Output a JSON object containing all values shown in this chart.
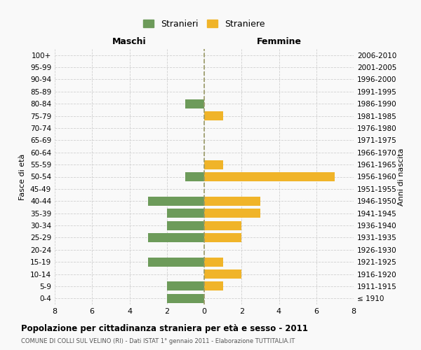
{
  "age_groups": [
    "100+",
    "95-99",
    "90-94",
    "85-89",
    "80-84",
    "75-79",
    "70-74",
    "65-69",
    "60-64",
    "55-59",
    "50-54",
    "45-49",
    "40-44",
    "35-39",
    "30-34",
    "25-29",
    "20-24",
    "15-19",
    "10-14",
    "5-9",
    "0-4"
  ],
  "birth_years": [
    "≤ 1910",
    "1911-1915",
    "1916-1920",
    "1921-1925",
    "1926-1930",
    "1931-1935",
    "1936-1940",
    "1941-1945",
    "1946-1950",
    "1951-1955",
    "1956-1960",
    "1961-1965",
    "1966-1970",
    "1971-1975",
    "1976-1980",
    "1981-1985",
    "1986-1990",
    "1991-1995",
    "1996-2000",
    "2001-2005",
    "2006-2010"
  ],
  "maschi": [
    0,
    0,
    0,
    0,
    1,
    0,
    0,
    0,
    0,
    0,
    1,
    0,
    3,
    2,
    2,
    3,
    0,
    3,
    0,
    2,
    2
  ],
  "femmine": [
    0,
    0,
    0,
    0,
    0,
    1,
    0,
    0,
    0,
    1,
    7,
    0,
    3,
    3,
    2,
    2,
    0,
    1,
    2,
    1,
    0
  ],
  "color_maschi": "#6d9b5a",
  "color_femmine": "#f0b429",
  "title": "Popolazione per cittadinanza straniera per età e sesso - 2011",
  "subtitle": "COMUNE DI COLLI SUL VELINO (RI) - Dati ISTAT 1° gennaio 2011 - Elaborazione TUTTITALIA.IT",
  "xlabel_left": "Maschi",
  "xlabel_right": "Femmine",
  "ylabel_left": "Fasce di età",
  "ylabel_right": "Anni di nascita",
  "xlim": 8,
  "xticks": [
    -8,
    -6,
    -4,
    -2,
    0,
    2,
    4,
    6,
    8
  ],
  "xticklabels": [
    "8",
    "6",
    "4",
    "2",
    "0",
    "2",
    "4",
    "6",
    "8"
  ],
  "legend_stranieri": "Stranieri",
  "legend_straniere": "Straniere",
  "background_color": "#f9f9f9",
  "grid_color": "#d0d0d0",
  "centerline_color": "#999966"
}
